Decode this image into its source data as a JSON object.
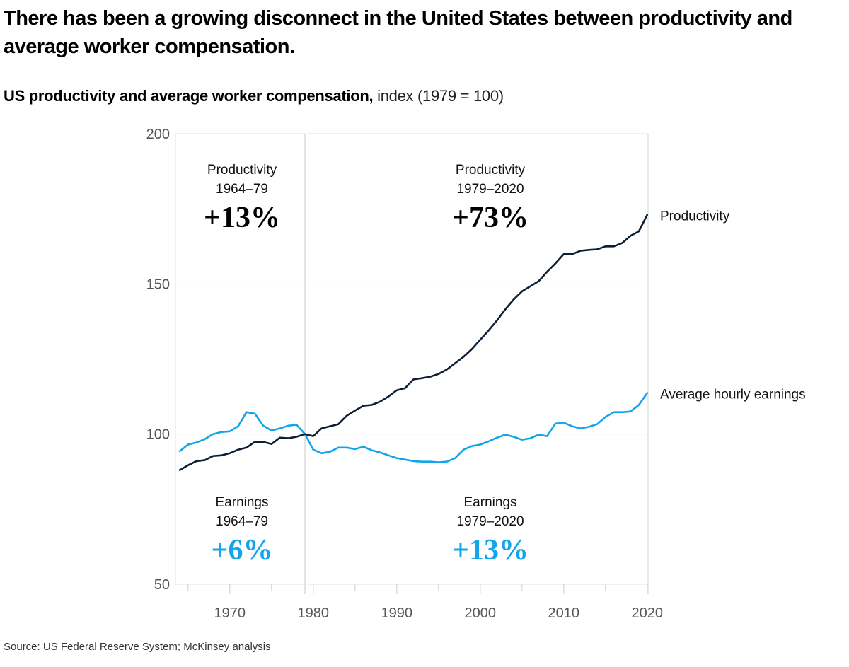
{
  "header": {
    "title": "There has been a growing disconnect in the United States between productivity and average worker compensation.",
    "subtitle_bold": "US productivity and average worker compensation,",
    "subtitle_light": " index (1979 = 100)"
  },
  "footer": {
    "source": "Source: US Federal Reserve System; McKinsey analysis"
  },
  "colors": {
    "productivity": "#0d1f33",
    "earnings": "#12a5ea",
    "grid": "#e3e3e3",
    "axis_text": "#555555"
  },
  "chart_data": {
    "type": "line",
    "title": "US productivity and average worker compensation, index (1979 = 100)",
    "xlabel": "",
    "ylabel": "",
    "xlim": [
      1963.5,
      2020
    ],
    "ylim": [
      50,
      200
    ],
    "x_ticks": [
      1970,
      1980,
      1990,
      2000,
      2010,
      2020
    ],
    "x_minor_ticks": [
      1965,
      1975,
      1985,
      1995,
      2005,
      2015
    ],
    "y_ticks": [
      50,
      100,
      150,
      200
    ],
    "grid": "horizontal",
    "divider_year": 1979,
    "x": [
      1964,
      1965,
      1966,
      1967,
      1968,
      1969,
      1970,
      1971,
      1972,
      1973,
      1974,
      1975,
      1976,
      1977,
      1978,
      1979,
      1980,
      1981,
      1982,
      1983,
      1984,
      1985,
      1986,
      1987,
      1988,
      1989,
      1990,
      1991,
      1992,
      1993,
      1994,
      1995,
      1996,
      1997,
      1998,
      1999,
      2000,
      2001,
      2002,
      2003,
      2004,
      2005,
      2006,
      2007,
      2008,
      2009,
      2010,
      2011,
      2012,
      2013,
      2014,
      2015,
      2016,
      2017,
      2018,
      2019,
      2020
    ],
    "series": [
      {
        "name": "Productivity",
        "label": "Productivity",
        "values": [
          88.0,
          89.6,
          91.0,
          91.3,
          92.7,
          92.9,
          93.6,
          94.8,
          95.5,
          97.4,
          97.4,
          96.7,
          98.8,
          98.6,
          99.1,
          100.0,
          99.3,
          101.9,
          102.6,
          103.3,
          106.1,
          107.8,
          109.4,
          109.7,
          110.8,
          112.5,
          114.6,
          115.3,
          118.2,
          118.6,
          119.1,
          120.0,
          121.5,
          123.6,
          125.7,
          128.3,
          131.4,
          134.5,
          137.8,
          141.5,
          144.8,
          147.5,
          149.2,
          150.9,
          154.0,
          156.8,
          159.9,
          159.9,
          161.0,
          161.3,
          161.5,
          162.5,
          162.5,
          163.6,
          166.0,
          167.5,
          173.0
        ]
      },
      {
        "name": "Average hourly earnings",
        "label": "Average hourly earnings",
        "values": [
          94.3,
          96.5,
          97.2,
          98.3,
          100.0,
          100.7,
          100.9,
          102.6,
          107.3,
          106.8,
          102.8,
          101.2,
          101.9,
          102.8,
          103.1,
          100.0,
          94.8,
          93.6,
          94.1,
          95.5,
          95.5,
          95.0,
          95.8,
          94.6,
          93.9,
          92.9,
          92.0,
          91.5,
          91.0,
          90.8,
          90.8,
          90.6,
          90.8,
          92.0,
          94.8,
          96.0,
          96.5,
          97.6,
          98.8,
          99.8,
          99.1,
          98.1,
          98.6,
          99.8,
          99.3,
          103.5,
          103.8,
          102.6,
          101.9,
          102.4,
          103.3,
          105.7,
          107.3,
          107.3,
          107.5,
          109.7,
          113.7
        ]
      }
    ],
    "annotations": [
      {
        "label": "Productivity",
        "period": "1964–79",
        "value": "+13%",
        "series": "productivity"
      },
      {
        "label": "Productivity",
        "period": "1979–2020",
        "value": "+73%",
        "series": "productivity"
      },
      {
        "label": "Earnings",
        "period": "1964–79",
        "value": "+6%",
        "series": "earnings"
      },
      {
        "label": "Earnings",
        "period": "1979–2020",
        "value": "+13%",
        "series": "earnings"
      }
    ]
  }
}
